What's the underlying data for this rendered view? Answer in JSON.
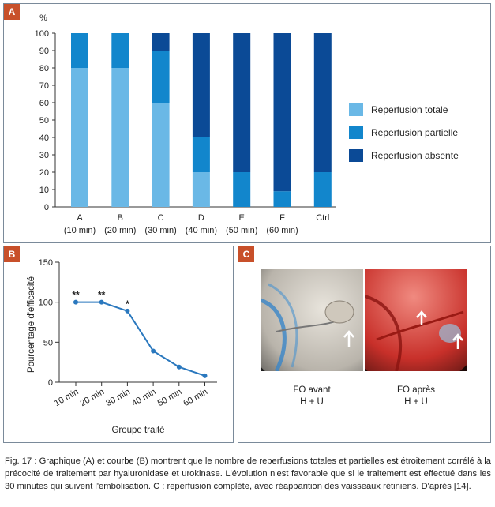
{
  "panels": {
    "a_label": "A",
    "b_label": "B",
    "c_label": "C"
  },
  "colors": {
    "totale": "#6ab8e6",
    "partielle": "#1286cc",
    "absente": "#0b4a96",
    "line": "#2a78be",
    "panel_label_bg": "#c8502a"
  },
  "chart_data": [
    {
      "type": "bar",
      "stacked": true,
      "ylabel": "%",
      "ylim": [
        0,
        100
      ],
      "yticks": [
        0,
        10,
        20,
        30,
        40,
        50,
        60,
        70,
        80,
        90,
        100
      ],
      "categories": [
        "A",
        "B",
        "C",
        "D",
        "E",
        "F",
        "Ctrl"
      ],
      "category_sublabels": [
        "(10 min)",
        "(20 min)",
        "(30 min)",
        "(40 min)",
        "(50 min)",
        "(60 min)",
        ""
      ],
      "series": [
        {
          "name": "Reperfusion totale",
          "values": [
            80,
            80,
            60,
            20,
            0,
            0,
            0
          ]
        },
        {
          "name": "Reperfusion partielle",
          "values": [
            20,
            20,
            30,
            20,
            20,
            9,
            20
          ]
        },
        {
          "name": "Reperfusion absente",
          "values": [
            0,
            0,
            10,
            60,
            80,
            91,
            80
          ]
        }
      ],
      "legend_position": "right"
    },
    {
      "type": "line",
      "ylabel": "Pourcentage d'efficacité",
      "xlabel": "Groupe traité",
      "ylim": [
        0,
        150
      ],
      "yticks": [
        0,
        50,
        100,
        150
      ],
      "categories": [
        "10 min",
        "20 min",
        "30 min",
        "40 min",
        "50 min",
        "60 min"
      ],
      "series": [
        {
          "values": [
            100,
            100,
            89,
            39,
            19,
            8
          ]
        }
      ],
      "annotations": [
        "**",
        "**",
        "*",
        "",
        "",
        ""
      ]
    }
  ],
  "panel_c": {
    "left_caption_line1": "FO avant",
    "left_caption_line2": "H + U",
    "right_caption_line1": "FO après",
    "right_caption_line2": "H + U"
  },
  "caption": {
    "text": "Fig. 17 : Graphique (A) et courbe (B) montrent que le nombre de reperfusions totales et partielles est étroitement corrélé à la précocité de traitement par hyaluronidase et urokinase. L'évolution n'est favorable que si le traitement est effectué dans les 30 minutes qui suivent l'embolisation. C : reperfusion complète, avec réapparition des vaisseaux rétiniens. D'après [14]."
  }
}
